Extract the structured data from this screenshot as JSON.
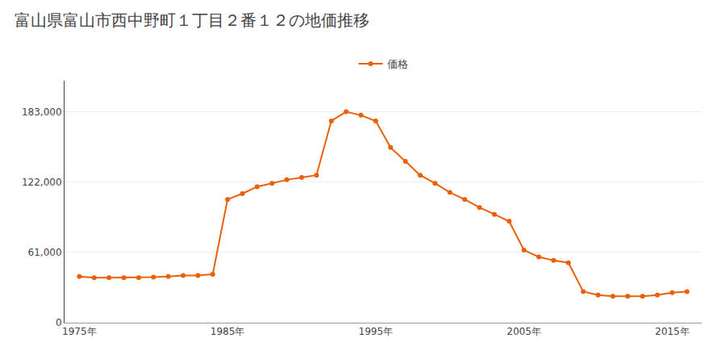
{
  "chart_data": {
    "type": "line",
    "title": "富山県富山市西中野町１丁目２番１２の地価推移",
    "x": [
      1975,
      1976,
      1977,
      1978,
      1979,
      1980,
      1981,
      1982,
      1983,
      1984,
      1985,
      1986,
      1987,
      1988,
      1989,
      1990,
      1991,
      1992,
      1993,
      1994,
      1995,
      1996,
      1997,
      1998,
      1999,
      2000,
      2001,
      2002,
      2003,
      2004,
      2005,
      2006,
      2007,
      2008,
      2009,
      2010,
      2011,
      2012,
      2013,
      2014,
      2015,
      2016
    ],
    "series": [
      {
        "name": "価格",
        "color": "#e8610a",
        "marker": "circle",
        "values": [
          40000,
          39000,
          39000,
          39000,
          39000,
          39500,
          40000,
          41000,
          41000,
          42000,
          107000,
          112000,
          118000,
          121000,
          124000,
          126000,
          128000,
          175000,
          183000,
          180000,
          175000,
          152000,
          140000,
          128000,
          121000,
          113000,
          107000,
          100000,
          94000,
          88000,
          63000,
          57000,
          54000,
          52000,
          27000,
          24000,
          23000,
          23000,
          23000,
          24000,
          26000,
          27000
        ]
      }
    ],
    "xlim": [
      1974,
      2017
    ],
    "xticks": [
      {
        "value": 1975,
        "label": "1975年"
      },
      {
        "value": 1985,
        "label": "1985年"
      },
      {
        "value": 1995,
        "label": "1995年"
      },
      {
        "value": 2005,
        "label": "2005年"
      },
      {
        "value": 2015,
        "label": "2015年"
      }
    ],
    "ylim": [
      0,
      210000
    ],
    "yticks": [
      0,
      {
        "value": 61000,
        "label": "61,000"
      },
      {
        "value": 122000,
        "label": "122,000"
      },
      {
        "value": 183000,
        "label": "183,000"
      }
    ],
    "grid": "y",
    "legend": "top"
  }
}
